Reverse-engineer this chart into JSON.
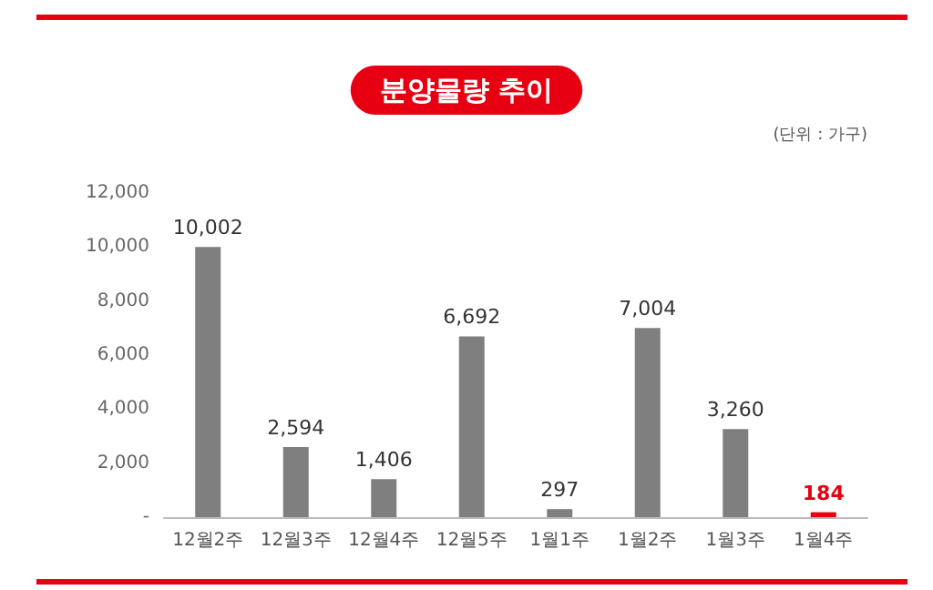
{
  "chart_data": {
    "type": "bar",
    "title": "분양물량 추이",
    "annotations": [
      "(단위 : 가구)"
    ],
    "categories": [
      "12월2주",
      "12월3주",
      "12월4주",
      "12월5주",
      "1월1주",
      "1월2주",
      "1월3주",
      "1월4주"
    ],
    "values": [
      10002,
      2594,
      1406,
      6692,
      297,
      7004,
      3260,
      184
    ],
    "colors": [
      "#7f7f7f",
      "#7f7f7f",
      "#7f7f7f",
      "#7f7f7f",
      "#7f7f7f",
      "#7f7f7f",
      "#7f7f7f",
      "#e60012"
    ],
    "ylim": [
      0,
      12000
    ],
    "yticks": [
      {
        "value": 0,
        "label": "-"
      },
      {
        "value": 2000,
        "label": "2,000"
      },
      {
        "value": 4000,
        "label": "4,000"
      },
      {
        "value": 6000,
        "label": "6,000"
      },
      {
        "value": 8000,
        "label": "8,000"
      },
      {
        "value": 10000,
        "label": "10,000"
      },
      {
        "value": 12000,
        "label": "12,000"
      }
    ],
    "value_labels": [
      "10,002",
      "2,594",
      "1,406",
      "6,692",
      "297",
      "7,004",
      "3,260",
      "184"
    ],
    "grid": false
  }
}
